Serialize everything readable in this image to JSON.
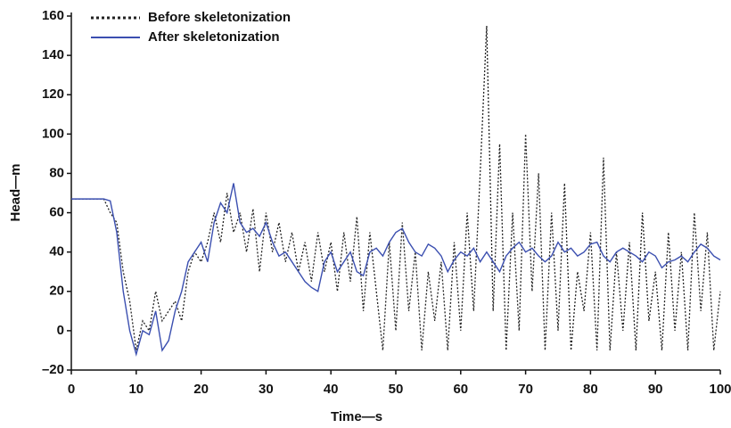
{
  "chart_data": {
    "type": "line",
    "xlabel": "Time—s",
    "ylabel": "Head—m",
    "x": [
      0,
      1,
      2,
      3,
      4,
      5,
      6,
      7,
      8,
      9,
      10,
      11,
      12,
      13,
      14,
      15,
      16,
      17,
      18,
      19,
      20,
      21,
      22,
      23,
      24,
      25,
      26,
      27,
      28,
      29,
      30,
      31,
      32,
      33,
      34,
      35,
      36,
      37,
      38,
      39,
      40,
      41,
      42,
      43,
      44,
      45,
      46,
      47,
      48,
      49,
      50,
      51,
      52,
      53,
      54,
      55,
      56,
      57,
      58,
      59,
      60,
      61,
      62,
      63,
      64,
      65,
      66,
      67,
      68,
      69,
      70,
      71,
      72,
      73,
      74,
      75,
      76,
      77,
      78,
      79,
      80,
      81,
      82,
      83,
      84,
      85,
      86,
      87,
      88,
      89,
      90,
      91,
      92,
      93,
      94,
      95,
      96,
      97,
      98,
      99,
      100
    ],
    "series": [
      {
        "name": "Before skeletonization",
        "color": "#222222",
        "dash": "dotted",
        "values": [
          67,
          67,
          67,
          67,
          67,
          67,
          60,
          55,
          30,
          15,
          -10,
          5,
          0,
          20,
          5,
          10,
          15,
          5,
          30,
          40,
          35,
          45,
          60,
          45,
          70,
          50,
          60,
          40,
          62,
          30,
          60,
          40,
          55,
          35,
          50,
          30,
          45,
          25,
          50,
          30,
          45,
          20,
          50,
          25,
          58,
          10,
          50,
          20,
          -10,
          45,
          0,
          55,
          10,
          40,
          -10,
          30,
          5,
          35,
          -10,
          45,
          0,
          60,
          10,
          80,
          155,
          10,
          95,
          -10,
          60,
          0,
          100,
          20,
          80,
          -10,
          60,
          0,
          75,
          -10,
          30,
          10,
          50,
          -10,
          88,
          -10,
          40,
          0,
          45,
          -10,
          60,
          5,
          30,
          -10,
          50,
          0,
          40,
          -10,
          60,
          10,
          50,
          -10,
          20
        ]
      },
      {
        "name": "After skeletonization",
        "color": "#3b4fb0",
        "dash": "solid",
        "values": [
          67,
          67,
          67,
          67,
          67,
          67,
          66,
          50,
          20,
          0,
          -12,
          0,
          -2,
          10,
          -10,
          -5,
          10,
          20,
          35,
          40,
          45,
          35,
          55,
          65,
          60,
          75,
          55,
          50,
          52,
          48,
          55,
          45,
          38,
          40,
          35,
          30,
          25,
          22,
          20,
          35,
          40,
          30,
          35,
          40,
          30,
          28,
          40,
          42,
          38,
          45,
          50,
          52,
          45,
          40,
          38,
          44,
          42,
          38,
          30,
          36,
          40,
          38,
          42,
          35,
          40,
          35,
          30,
          38,
          42,
          45,
          40,
          42,
          38,
          35,
          38,
          45,
          40,
          42,
          38,
          40,
          44,
          45,
          38,
          35,
          40,
          42,
          40,
          38,
          35,
          40,
          38,
          32,
          35,
          36,
          38,
          35,
          40,
          44,
          42,
          38,
          36
        ]
      }
    ],
    "xlim": [
      0,
      100
    ],
    "xticks": [
      0,
      10,
      20,
      30,
      40,
      50,
      60,
      70,
      80,
      90,
      100
    ],
    "ylim": [
      -20,
      160
    ],
    "yticks": [
      {
        "value": -20,
        "label": "–20"
      },
      0,
      20,
      40,
      60,
      80,
      100,
      120,
      140,
      160
    ],
    "legend": "top-left"
  }
}
